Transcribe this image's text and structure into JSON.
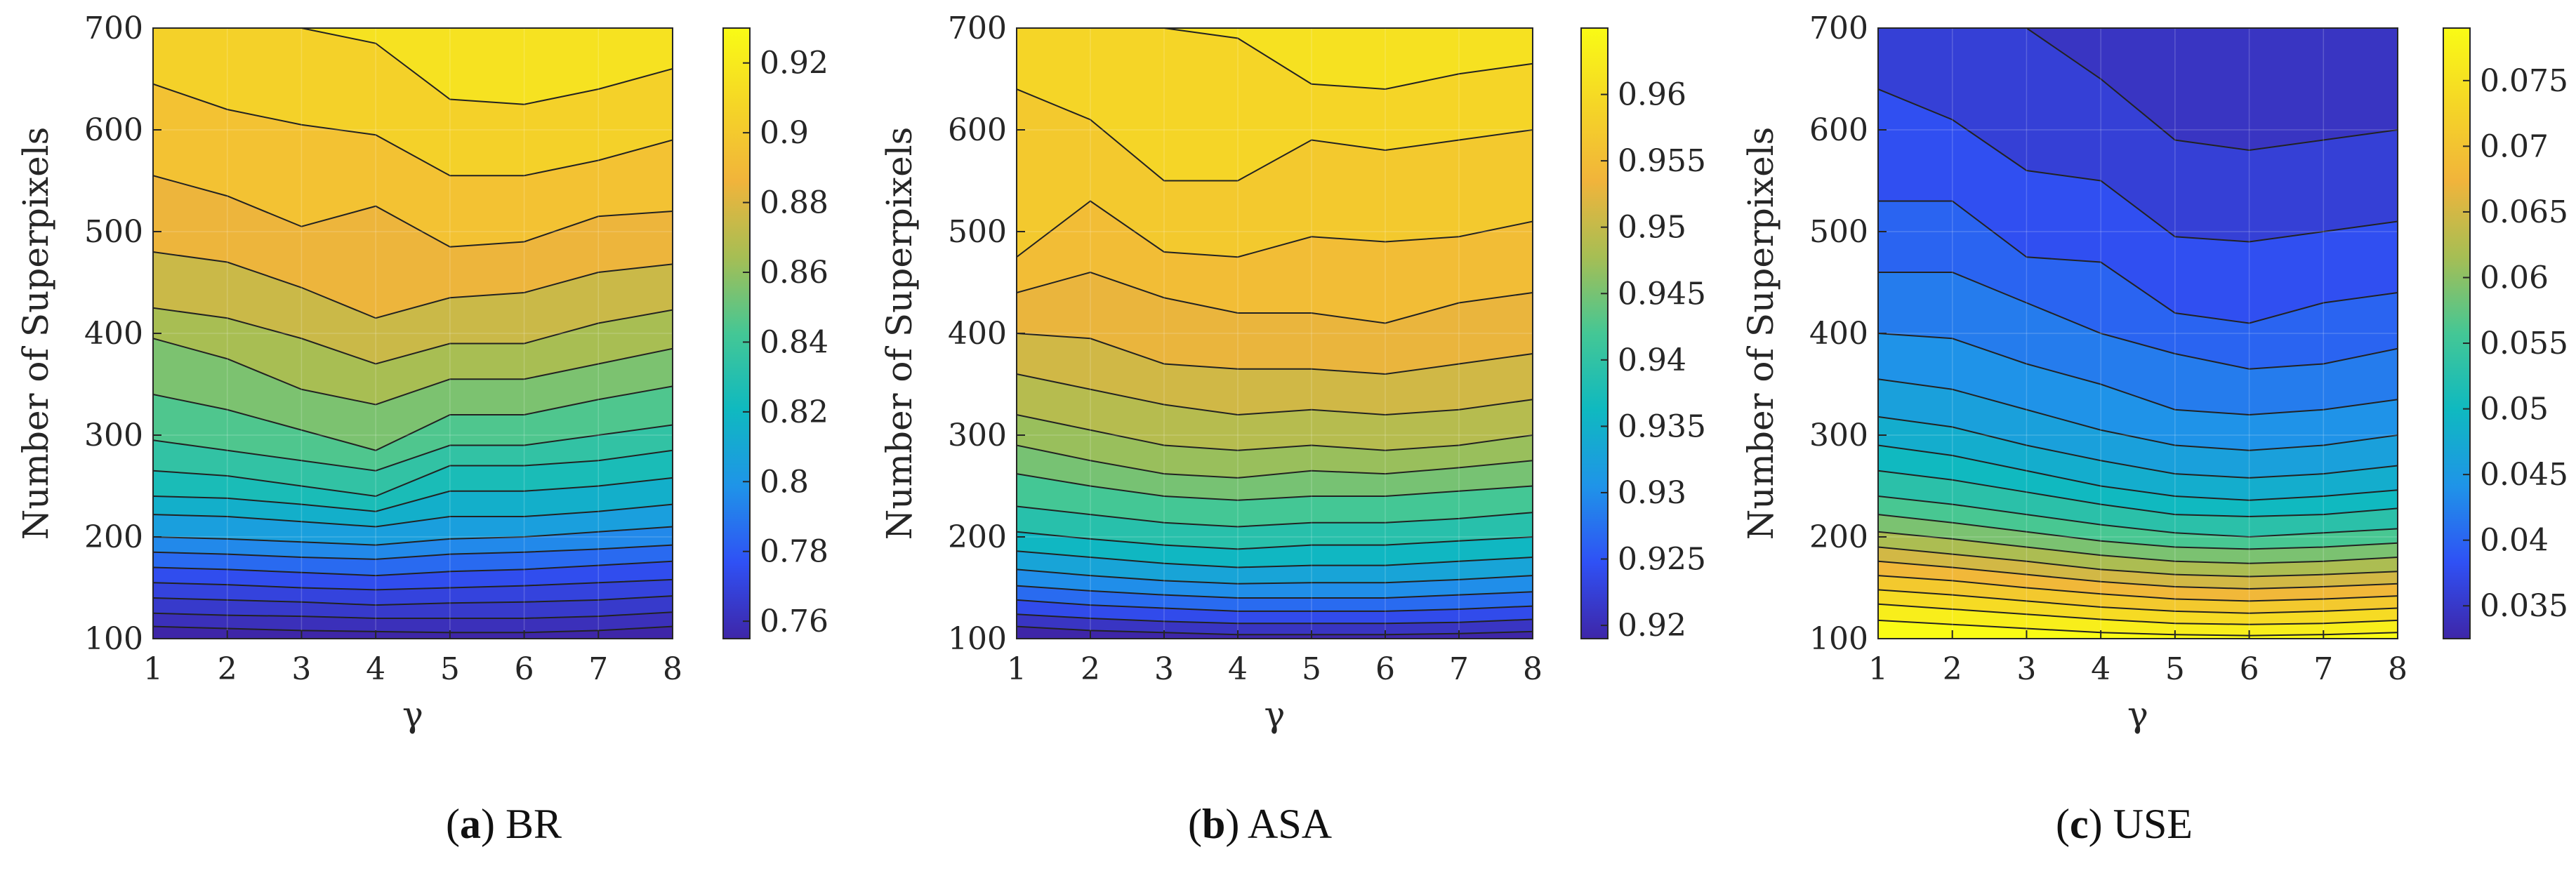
{
  "colors": {
    "colormap": [
      "#3e26a8",
      "#2f51f5",
      "#1f94e8",
      "#0fb9c0",
      "#44c795",
      "#a6be54",
      "#f1b43b",
      "#f5d626",
      "#f9fb15"
    ],
    "contour_line": "#222222",
    "axis": "#262626"
  },
  "chart_data": [
    {
      "type": "contour",
      "name": "BR",
      "caption": {
        "letter": "a",
        "text": "BR"
      },
      "xlabel": "γ",
      "ylabel": "Number of Superpixels",
      "x": [
        1,
        2,
        3,
        4,
        5,
        6,
        7,
        8
      ],
      "y": [
        100,
        700
      ],
      "xticks": [
        "1",
        "2",
        "3",
        "4",
        "5",
        "6",
        "7",
        "8"
      ],
      "yticks": [
        "100",
        "200",
        "300",
        "400",
        "500",
        "600",
        "700"
      ],
      "clim": [
        0.755,
        0.93
      ],
      "colorbar_ticks": [
        "0.76",
        "0.78",
        "0.8",
        "0.82",
        "0.84",
        "0.86",
        "0.88",
        "0.9",
        "0.92"
      ],
      "colorbar_tick_values": [
        0.76,
        0.78,
        0.8,
        0.82,
        0.84,
        0.86,
        0.88,
        0.9,
        0.92
      ],
      "contour_lines": [
        {
          "level": 0.915,
          "y": [
            700,
            700,
            700,
            685,
            630,
            625,
            640,
            660
          ]
        },
        {
          "level": 0.905,
          "y": [
            645,
            620,
            605,
            595,
            555,
            555,
            570,
            590
          ]
        },
        {
          "level": 0.895,
          "y": [
            555,
            535,
            505,
            525,
            485,
            490,
            515,
            520
          ]
        },
        {
          "level": 0.885,
          "y": [
            480,
            470,
            445,
            415,
            435,
            440,
            460,
            468
          ]
        },
        {
          "level": 0.875,
          "y": [
            425,
            415,
            395,
            370,
            390,
            390,
            410,
            423
          ]
        },
        {
          "level": 0.865,
          "y": [
            395,
            375,
            345,
            330,
            355,
            355,
            370,
            385
          ]
        },
        {
          "level": 0.855,
          "y": [
            340,
            325,
            305,
            285,
            320,
            320,
            335,
            348
          ]
        },
        {
          "level": 0.845,
          "y": [
            295,
            285,
            275,
            265,
            290,
            290,
            300,
            310
          ]
        },
        {
          "level": 0.835,
          "y": [
            265,
            260,
            250,
            240,
            270,
            270,
            275,
            285
          ]
        },
        {
          "level": 0.825,
          "y": [
            240,
            238,
            232,
            225,
            245,
            245,
            250,
            258
          ]
        },
        {
          "level": 0.815,
          "y": [
            222,
            220,
            215,
            210,
            220,
            220,
            225,
            232
          ]
        },
        {
          "level": 0.805,
          "y": [
            200,
            198,
            195,
            192,
            198,
            200,
            205,
            210
          ]
        },
        {
          "level": 0.795,
          "y": [
            185,
            183,
            180,
            178,
            183,
            185,
            188,
            192
          ]
        },
        {
          "level": 0.785,
          "y": [
            170,
            168,
            165,
            162,
            166,
            168,
            172,
            176
          ]
        },
        {
          "level": 0.775,
          "y": [
            155,
            153,
            150,
            148,
            150,
            152,
            155,
            158
          ]
        },
        {
          "level": 0.77,
          "y": [
            140,
            138,
            136,
            133,
            135,
            136,
            138,
            142
          ]
        },
        {
          "level": 0.765,
          "y": [
            125,
            123,
            122,
            120,
            120,
            120,
            122,
            126
          ]
        },
        {
          "level": 0.76,
          "y": [
            112,
            110,
            108,
            107,
            106,
            106,
            108,
            112
          ]
        }
      ]
    },
    {
      "type": "contour",
      "name": "ASA",
      "caption": {
        "letter": "b",
        "text": "ASA"
      },
      "xlabel": "γ",
      "ylabel": "Number of Superpixels",
      "x": [
        1,
        2,
        3,
        4,
        5,
        6,
        7,
        8
      ],
      "y": [
        100,
        700
      ],
      "xticks": [
        "1",
        "2",
        "3",
        "4",
        "5",
        "6",
        "7",
        "8"
      ],
      "yticks": [
        "100",
        "200",
        "300",
        "400",
        "500",
        "600",
        "700"
      ],
      "clim": [
        0.919,
        0.965
      ],
      "colorbar_ticks": [
        "0.92",
        "0.925",
        "0.93",
        "0.935",
        "0.94",
        "0.945",
        "0.95",
        "0.955",
        "0.96"
      ],
      "colorbar_tick_values": [
        0.92,
        0.925,
        0.93,
        0.935,
        0.94,
        0.945,
        0.95,
        0.955,
        0.96
      ],
      "contour_lines": [
        {
          "level": 0.9625,
          "y": [
            700,
            700,
            700,
            700,
            700,
            700,
            700,
            700
          ]
        },
        {
          "level": 0.961,
          "y": [
            700,
            700,
            700,
            690,
            645,
            640,
            655,
            665
          ]
        },
        {
          "level": 0.959,
          "y": [
            640,
            610,
            550,
            550,
            590,
            580,
            590,
            600
          ]
        },
        {
          "level": 0.957,
          "y": [
            475,
            530,
            480,
            475,
            495,
            490,
            495,
            510
          ]
        },
        {
          "level": 0.955,
          "y": [
            440,
            460,
            435,
            420,
            420,
            410,
            430,
            440
          ]
        },
        {
          "level": 0.953,
          "y": [
            400,
            395,
            370,
            365,
            365,
            360,
            370,
            380
          ]
        },
        {
          "level": 0.951,
          "y": [
            360,
            345,
            330,
            320,
            325,
            320,
            325,
            335
          ]
        },
        {
          "level": 0.949,
          "y": [
            320,
            305,
            290,
            285,
            290,
            285,
            290,
            300
          ]
        },
        {
          "level": 0.947,
          "y": [
            290,
            275,
            262,
            258,
            265,
            262,
            268,
            275
          ]
        },
        {
          "level": 0.945,
          "y": [
            262,
            250,
            240,
            236,
            240,
            240,
            245,
            250
          ]
        },
        {
          "level": 0.942,
          "y": [
            230,
            222,
            214,
            210,
            214,
            214,
            218,
            224
          ]
        },
        {
          "level": 0.939,
          "y": [
            205,
            198,
            192,
            188,
            192,
            192,
            196,
            200
          ]
        },
        {
          "level": 0.936,
          "y": [
            186,
            180,
            174,
            170,
            172,
            172,
            176,
            180
          ]
        },
        {
          "level": 0.933,
          "y": [
            168,
            162,
            157,
            154,
            155,
            155,
            158,
            162
          ]
        },
        {
          "level": 0.93,
          "y": [
            152,
            147,
            143,
            140,
            140,
            140,
            143,
            146
          ]
        },
        {
          "level": 0.927,
          "y": [
            138,
            133,
            130,
            127,
            127,
            127,
            129,
            132
          ]
        },
        {
          "level": 0.924,
          "y": [
            124,
            120,
            117,
            115,
            115,
            115,
            116,
            119
          ]
        },
        {
          "level": 0.921,
          "y": [
            112,
            108,
            106,
            104,
            104,
            104,
            105,
            107
          ]
        }
      ]
    },
    {
      "type": "contour",
      "name": "USE",
      "caption": {
        "letter": "c",
        "text": "USE"
      },
      "xlabel": "γ",
      "ylabel": "Number of Superpixels",
      "x": [
        1,
        2,
        3,
        4,
        5,
        6,
        7,
        8
      ],
      "y": [
        100,
        700
      ],
      "xticks": [
        "1",
        "2",
        "3",
        "4",
        "5",
        "6",
        "7",
        "8"
      ],
      "yticks": [
        "100",
        "200",
        "300",
        "400",
        "500",
        "600",
        "700"
      ],
      "clim": [
        0.0325,
        0.079
      ],
      "colorbar_ticks": [
        "0.035",
        "0.04",
        "0.045",
        "0.05",
        "0.055",
        "0.06",
        "0.065",
        "0.07",
        "0.075"
      ],
      "colorbar_tick_values": [
        0.035,
        0.04,
        0.045,
        0.05,
        0.055,
        0.06,
        0.065,
        0.07,
        0.075
      ],
      "contour_lines": [
        {
          "level": 0.034,
          "y": [
            700,
            700,
            700,
            700,
            700,
            700,
            700,
            700
          ]
        },
        {
          "level": 0.0345,
          "y": [
            700,
            700,
            700,
            650,
            590,
            580,
            590,
            600
          ]
        },
        {
          "level": 0.036,
          "y": [
            640,
            610,
            560,
            550,
            495,
            490,
            500,
            510
          ]
        },
        {
          "level": 0.038,
          "y": [
            530,
            530,
            475,
            470,
            420,
            410,
            430,
            440
          ]
        },
        {
          "level": 0.04,
          "y": [
            460,
            460,
            430,
            400,
            380,
            365,
            370,
            385
          ]
        },
        {
          "level": 0.042,
          "y": [
            400,
            395,
            370,
            350,
            325,
            320,
            325,
            335
          ]
        },
        {
          "level": 0.044,
          "y": [
            355,
            345,
            325,
            305,
            290,
            285,
            290,
            300
          ]
        },
        {
          "level": 0.046,
          "y": [
            318,
            308,
            290,
            275,
            262,
            258,
            262,
            270
          ]
        },
        {
          "level": 0.048,
          "y": [
            290,
            280,
            265,
            250,
            240,
            236,
            240,
            246
          ]
        },
        {
          "level": 0.05,
          "y": [
            265,
            256,
            244,
            232,
            222,
            220,
            222,
            228
          ]
        },
        {
          "level": 0.053,
          "y": [
            240,
            232,
            222,
            212,
            204,
            200,
            204,
            208
          ]
        },
        {
          "level": 0.056,
          "y": [
            222,
            214,
            205,
            196,
            190,
            188,
            190,
            194
          ]
        },
        {
          "level": 0.059,
          "y": [
            205,
            198,
            190,
            182,
            176,
            174,
            176,
            180
          ]
        },
        {
          "level": 0.062,
          "y": [
            190,
            183,
            176,
            168,
            163,
            161,
            163,
            166
          ]
        },
        {
          "level": 0.065,
          "y": [
            176,
            170,
            163,
            156,
            151,
            149,
            151,
            154
          ]
        },
        {
          "level": 0.068,
          "y": [
            162,
            157,
            150,
            144,
            139,
            137,
            139,
            142
          ]
        },
        {
          "level": 0.071,
          "y": [
            148,
            143,
            137,
            131,
            127,
            125,
            127,
            130
          ]
        },
        {
          "level": 0.074,
          "y": [
            134,
            129,
            124,
            119,
            115,
            114,
            115,
            118
          ]
        },
        {
          "level": 0.077,
          "y": [
            118,
            114,
            110,
            106,
            104,
            103,
            104,
            106
          ]
        }
      ]
    }
  ]
}
